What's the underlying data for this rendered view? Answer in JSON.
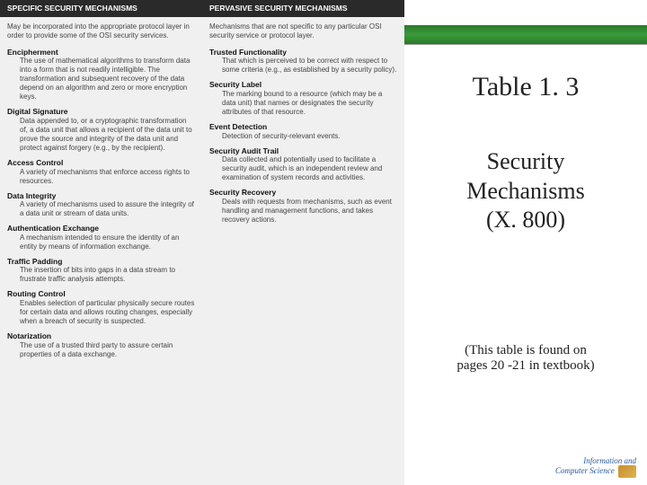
{
  "colors": {
    "header_bg": "#2a2a2a",
    "header_text": "#ffffff",
    "green_bar": "#3a9a3a",
    "body_bg": "#f0f0f0",
    "text": "#444444",
    "logo_text": "#2a5a9a"
  },
  "left_col": {
    "header": "SPECIFIC SECURITY MECHANISMS",
    "intro": "May be incorporated into the appropriate protocol layer in order to provide some of the OSI security services.",
    "items": [
      {
        "term": "Encipherment",
        "def": "The use of mathematical algorithms to transform data into a form that is not readily intelligible. The transformation and subsequent recovery of the data depend on an algorithm and zero or more encryption keys."
      },
      {
        "term": "Digital Signature",
        "def": "Data appended to, or a cryptographic transformation of, a data unit that allows a recipient of the data unit to prove the source and integrity of the data unit and protect against forgery (e.g., by the recipient)."
      },
      {
        "term": "Access Control",
        "def": "A variety of mechanisms that enforce access rights to resources."
      },
      {
        "term": "Data Integrity",
        "def": "A variety of mechanisms used to assure the integrity of a data unit or stream of data units."
      },
      {
        "term": "Authentication Exchange",
        "def": "A mechanism intended to ensure the identity of an entity by means of information exchange."
      },
      {
        "term": "Traffic Padding",
        "def": "The insertion of bits into gaps in a data stream to frustrate traffic analysis attempts."
      },
      {
        "term": "Routing Control",
        "def": "Enables selection of particular physically secure routes for certain data and allows routing changes, especially when a breach of security is suspected."
      },
      {
        "term": "Notarization",
        "def": "The use of a trusted third party to assure certain properties of a data exchange."
      }
    ]
  },
  "right_col": {
    "header": "PERVASIVE SECURITY MECHANISMS",
    "intro": "Mechanisms that are not specific to any particular OSI security service or protocol layer.",
    "items": [
      {
        "term": "Trusted Functionality",
        "def": "That which is perceived to be correct with respect to some criteria (e.g., as established by a security policy)."
      },
      {
        "term": "Security Label",
        "def": "The marking bound to a resource (which may be a data unit) that names or designates the security attributes of that resource."
      },
      {
        "term": "Event Detection",
        "def": "Detection of security-relevant events."
      },
      {
        "term": "Security Audit Trail",
        "def": "Data collected and potentially used to facilitate a security audit, which is an independent review and examination of system records and activities."
      },
      {
        "term": "Security Recovery",
        "def": "Deals with requests from mechanisms, such as event handling and management functions, and takes recovery actions."
      }
    ]
  },
  "title": "Table 1. 3",
  "subtitle_l1": "Security",
  "subtitle_l2": "Mechanisms",
  "subtitle_l3": "(X. 800)",
  "footnote_l1": "(This table is found on",
  "footnote_l2": "pages 20 -21 in textbook)",
  "logo_l1": "Information and",
  "logo_l2": "Computer Science"
}
